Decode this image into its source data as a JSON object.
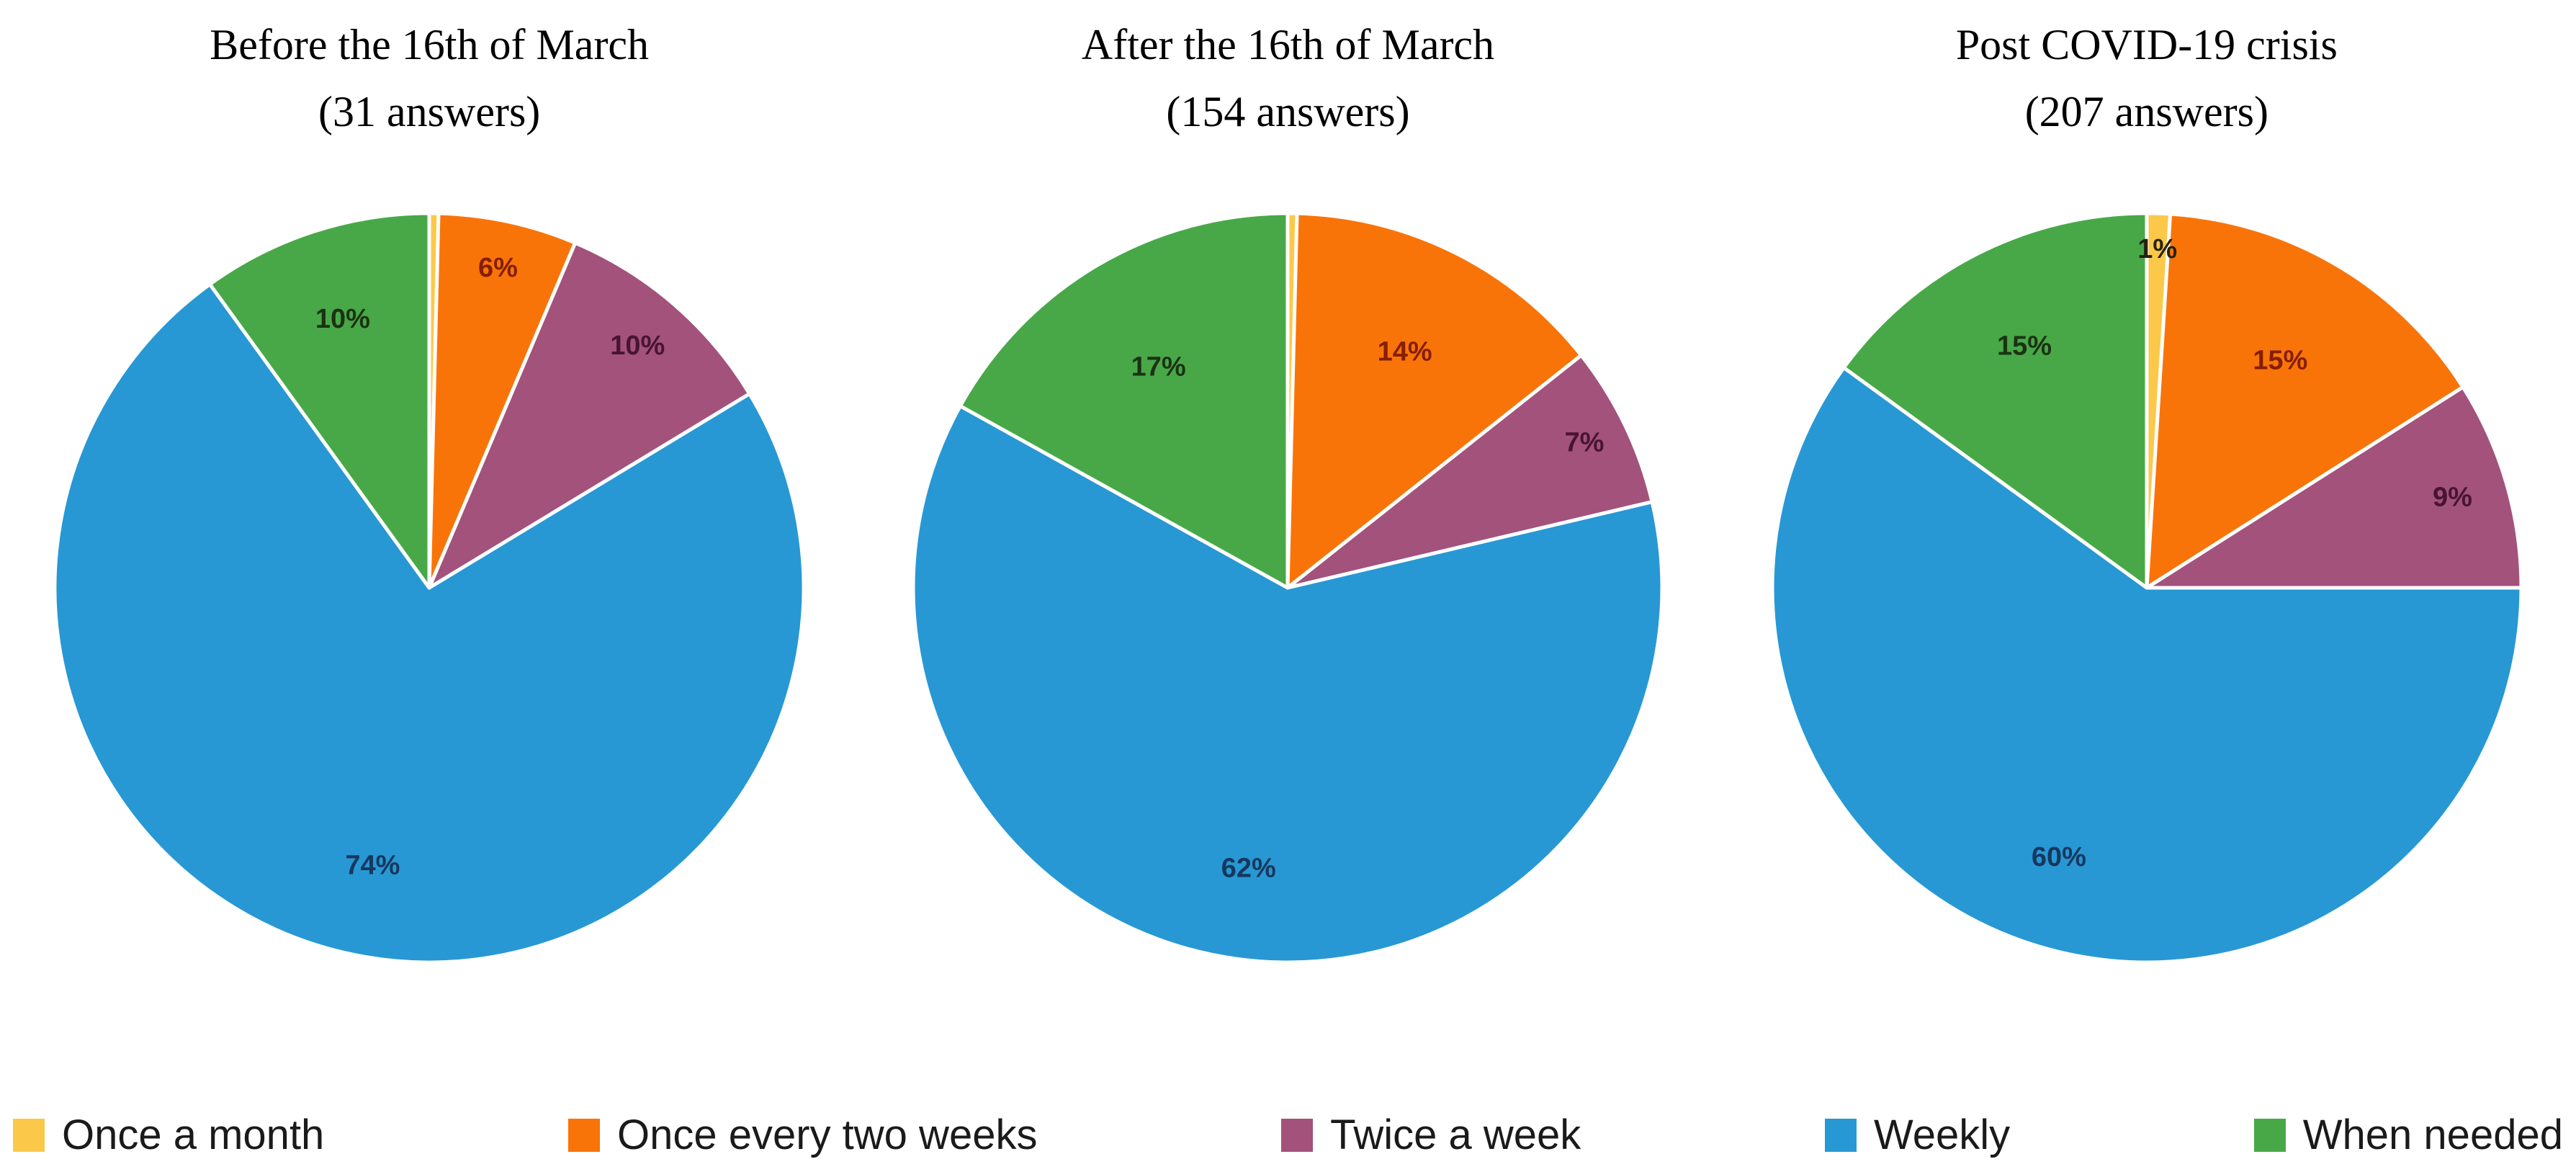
{
  "figure": {
    "background": "#ffffff"
  },
  "chart_data": [
    {
      "type": "pie",
      "title": "Before the 16th of March",
      "subtitle": "(31 answers)",
      "categories": [
        "Once a month",
        "Once every two weeks",
        "Twice a week",
        "Weekly",
        "When needed"
      ],
      "values": [
        0,
        6,
        10,
        74,
        10
      ],
      "unit": "%",
      "slice_labels": [
        "",
        "6%",
        "10%",
        "74%",
        "10%"
      ],
      "colors": [
        "#FBC84A",
        "#F97408",
        "#A3527B",
        "#2798D4",
        "#48A848"
      ],
      "label_colors": [
        "#26220F",
        "#841E04",
        "#471533",
        "#17375E",
        "#1C3213"
      ],
      "label_radius": [
        0.9,
        0.87,
        0.85,
        0.76,
        0.75
      ],
      "start_angle_deg": 0,
      "direction": "clockwise",
      "legend_position": "bottom"
    },
    {
      "type": "pie",
      "title": "After the 16th of March",
      "subtitle": "(154 answers)",
      "categories": [
        "Once a month",
        "Once every two weeks",
        "Twice a week",
        "Weekly",
        "When needed"
      ],
      "values": [
        0,
        14,
        7,
        62,
        17
      ],
      "unit": "%",
      "slice_labels": [
        "",
        "14%",
        "7%",
        "62%",
        "17%"
      ],
      "colors": [
        "#FBC84A",
        "#F97408",
        "#A3527B",
        "#2798D4",
        "#48A848"
      ],
      "label_colors": [
        "#26220F",
        "#841E04",
        "#471533",
        "#17375E",
        "#1C3213"
      ],
      "label_radius": [
        0.9,
        0.7,
        0.88,
        0.76,
        0.68
      ],
      "start_angle_deg": 0,
      "direction": "clockwise",
      "legend_position": "bottom"
    },
    {
      "type": "pie",
      "title": "Post COVID-19 crisis",
      "subtitle": "(207 answers)",
      "categories": [
        "Once a month",
        "Once every two weeks",
        "Twice a week",
        "Weekly",
        "When needed"
      ],
      "values": [
        1,
        15,
        9,
        60,
        15
      ],
      "unit": "%",
      "slice_labels": [
        "1%",
        "15%",
        "9%",
        "60%",
        "15%"
      ],
      "colors": [
        "#FBC84A",
        "#F97408",
        "#A3527B",
        "#2798D4",
        "#48A848"
      ],
      "label_colors": [
        "#26220F",
        "#841E04",
        "#471533",
        "#17375E",
        "#1C3213"
      ],
      "label_radius": [
        0.9,
        0.7,
        0.85,
        0.76,
        0.72
      ],
      "start_angle_deg": 0,
      "direction": "clockwise",
      "legend_position": "bottom"
    }
  ],
  "legend": {
    "position": "bottom",
    "items": [
      {
        "label": "Once a month",
        "color": "#FBC84A"
      },
      {
        "label": "Once every two weeks",
        "color": "#F97408"
      },
      {
        "label": "Twice a week",
        "color": "#A3527B"
      },
      {
        "label": "Weekly",
        "color": "#2798D4"
      },
      {
        "label": "When needed",
        "color": "#48A848"
      }
    ]
  }
}
